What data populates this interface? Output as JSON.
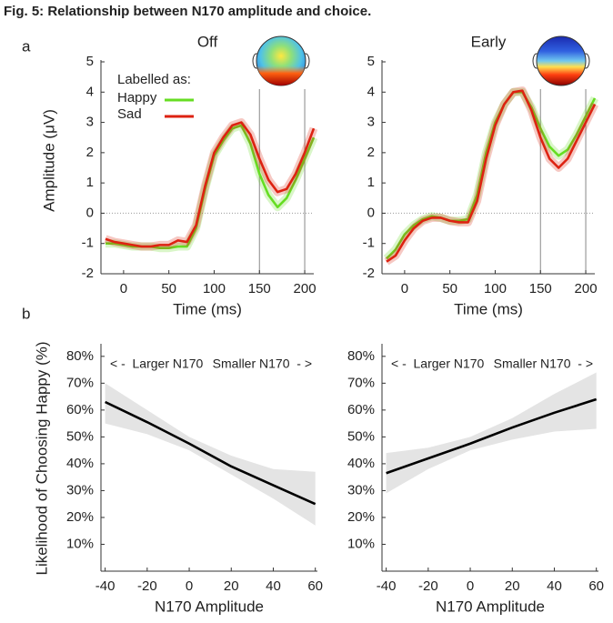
{
  "title": "Fig. 5: Relationship between N170 amplitude and choice.",
  "panel_labels": [
    "a",
    "b"
  ],
  "chart_data": [
    {
      "type": "line",
      "title": "Off",
      "xlabel": "Time (ms)",
      "ylabel": "Amplitude (μV)",
      "xlim": [
        -25,
        210
      ],
      "ylim": [
        -2,
        5
      ],
      "xticks": [
        0,
        50,
        100,
        150,
        200
      ],
      "yticks": [
        -2,
        -1,
        0,
        1,
        2,
        3,
        4,
        5
      ],
      "hline": 0,
      "vlines": [
        150,
        200
      ],
      "legend_title": "Labelled as:",
      "legend": "upper left",
      "x": [
        -20,
        -10,
        0,
        10,
        20,
        30,
        40,
        50,
        60,
        70,
        80,
        90,
        100,
        110,
        120,
        130,
        140,
        150,
        160,
        170,
        180,
        190,
        200,
        210
      ],
      "series": [
        {
          "name": "Happy",
          "color": "#66dd22",
          "values": [
            -1.0,
            -1.0,
            -1.05,
            -1.1,
            -1.1,
            -1.1,
            -1.15,
            -1.15,
            -1.1,
            -1.1,
            -0.5,
            0.8,
            1.9,
            2.4,
            2.8,
            2.9,
            2.3,
            1.3,
            0.6,
            0.2,
            0.5,
            1.1,
            1.8,
            2.5
          ]
        },
        {
          "name": "Sad",
          "color": "#dd2211",
          "values": [
            -0.85,
            -0.95,
            -1.0,
            -1.05,
            -1.1,
            -1.1,
            -1.05,
            -1.05,
            -0.9,
            -0.95,
            -0.4,
            0.9,
            2.0,
            2.5,
            2.9,
            3.0,
            2.6,
            1.8,
            1.1,
            0.7,
            0.8,
            1.3,
            2.0,
            2.8
          ]
        }
      ]
    },
    {
      "type": "line",
      "title": "Early",
      "xlabel": "Time (ms)",
      "xlim": [
        -25,
        210
      ],
      "ylim": [
        -2,
        5
      ],
      "xticks": [
        0,
        50,
        100,
        150,
        200
      ],
      "yticks": [
        -2,
        -1,
        0,
        1,
        2,
        3,
        4,
        5
      ],
      "hline": 0,
      "vlines": [
        150,
        200
      ],
      "x": [
        -20,
        -10,
        0,
        10,
        20,
        30,
        40,
        50,
        60,
        70,
        80,
        90,
        100,
        110,
        120,
        130,
        140,
        150,
        160,
        170,
        180,
        190,
        200,
        210
      ],
      "series": [
        {
          "color": "#66dd22",
          "values": [
            -1.5,
            -1.2,
            -0.7,
            -0.4,
            -0.2,
            -0.1,
            -0.15,
            -0.25,
            -0.25,
            -0.2,
            0.6,
            2.0,
            3.0,
            3.6,
            4.0,
            4.0,
            3.5,
            2.8,
            2.2,
            1.9,
            2.1,
            2.6,
            3.2,
            3.8
          ]
        },
        {
          "color": "#dd2211",
          "values": [
            -1.6,
            -1.4,
            -0.9,
            -0.5,
            -0.25,
            -0.15,
            -0.15,
            -0.25,
            -0.3,
            -0.3,
            0.4,
            1.8,
            2.9,
            3.6,
            4.0,
            4.05,
            3.4,
            2.5,
            1.8,
            1.5,
            1.8,
            2.4,
            3.0,
            3.6
          ]
        }
      ]
    },
    {
      "type": "line",
      "xlabel": "N170 Amplitude",
      "ylabel": "Likelihood of Choosing Happy (%)",
      "xlim": [
        -42,
        61
      ],
      "ylim": [
        0,
        84
      ],
      "xticks": [
        -40,
        -20,
        0,
        20,
        40,
        60
      ],
      "yticks": [
        {
          "value": 10,
          "label": "10%"
        },
        {
          "value": 20,
          "label": "20%"
        },
        {
          "value": 30,
          "label": "30%"
        },
        {
          "value": 40,
          "label": "40%"
        },
        {
          "value": 50,
          "label": "50%"
        },
        {
          "value": 60,
          "label": "60%"
        },
        {
          "value": 70,
          "label": "70%"
        },
        {
          "value": 80,
          "label": "80%"
        }
      ],
      "annotations": [
        "< -  Larger N170",
        "Smaller N170  - >"
      ],
      "x": [
        -40,
        -20,
        0,
        20,
        40,
        60
      ],
      "series": [
        {
          "color": "#000000",
          "values": [
            63,
            55.5,
            47.5,
            39,
            32,
            25
          ],
          "band": {
            "color": "#e4e4e4",
            "lower": [
              55,
              51,
              45,
              36,
              27,
              17
            ],
            "upper": [
              70,
              60,
              50,
              43,
              38,
              37
            ]
          }
        }
      ]
    },
    {
      "type": "line",
      "xlabel": "N170 Amplitude",
      "xlim": [
        -42,
        61
      ],
      "ylim": [
        0,
        84
      ],
      "xticks": [
        -40,
        -20,
        0,
        20,
        40,
        60
      ],
      "yticks": [
        {
          "value": 10,
          "label": "10%"
        },
        {
          "value": 20,
          "label": "20%"
        },
        {
          "value": 30,
          "label": "30%"
        },
        {
          "value": 40,
          "label": "40%"
        },
        {
          "value": 50,
          "label": "50%"
        },
        {
          "value": 60,
          "label": "60%"
        },
        {
          "value": 70,
          "label": "70%"
        },
        {
          "value": 80,
          "label": "80%"
        }
      ],
      "annotations": [
        "< -  Larger N170",
        "Smaller N170  - >"
      ],
      "x": [
        -40,
        -20,
        0,
        20,
        40,
        60
      ],
      "series": [
        {
          "color": "#000000",
          "values": [
            36.5,
            42,
            47.5,
            53.5,
            59,
            64
          ],
          "band": {
            "color": "#e4e4e4",
            "lower": [
              29,
              38,
              45,
              49,
              52,
              53
            ],
            "upper": [
              44,
              46,
              50,
              57,
              66,
              74
            ]
          }
        }
      ]
    }
  ]
}
